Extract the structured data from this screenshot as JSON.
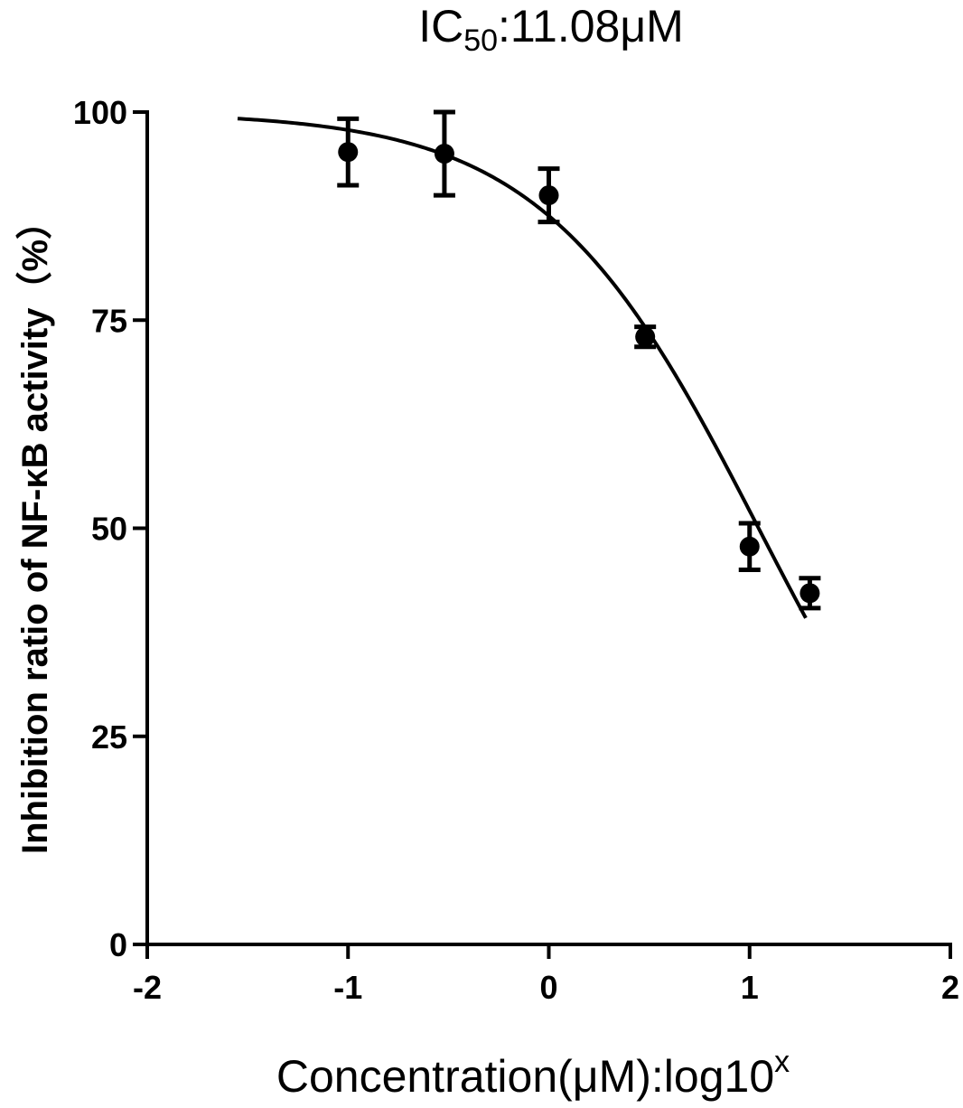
{
  "chart_data": {
    "type": "scatter",
    "title": {
      "prefix": "IC",
      "subscript": "50",
      "suffix": ":11.08μM"
    },
    "xlabel": {
      "main": "Concentration(μM):log10",
      "superscript": "x"
    },
    "ylabel": "Inhibition ratio of NF-κB activity（%）",
    "xlim": [
      -2,
      2
    ],
    "ylim": [
      0,
      100
    ],
    "xticks": [
      -2,
      -1,
      0,
      1,
      2
    ],
    "xtick_labels": [
      "-2",
      "-1",
      "0",
      "1",
      "2"
    ],
    "yticks": [
      0,
      25,
      50,
      75,
      100
    ],
    "ytick_labels": [
      "0",
      "25",
      "50",
      "75",
      "100"
    ],
    "grid": false,
    "legend": "none",
    "series": [
      {
        "points": [
          {
            "x": -1.0,
            "y": 95.2,
            "err": 4.0
          },
          {
            "x": -0.52,
            "y": 95.0,
            "err": 5.0
          },
          {
            "x": 0.0,
            "y": 90.0,
            "err": 3.2
          },
          {
            "x": 0.48,
            "y": 73.0,
            "err": 1.2
          },
          {
            "x": 1.0,
            "y": 47.8,
            "err": 2.8
          },
          {
            "x": 1.3,
            "y": 42.2,
            "err": 1.8
          }
        ],
        "fit": {
          "model": "four-parameter logistic",
          "top": 100,
          "bottom": 0,
          "log_ic50": 1.045,
          "hill_slope": -0.81,
          "x_range": [
            -1.55,
            1.28
          ]
        }
      }
    ],
    "color": "#000000"
  }
}
